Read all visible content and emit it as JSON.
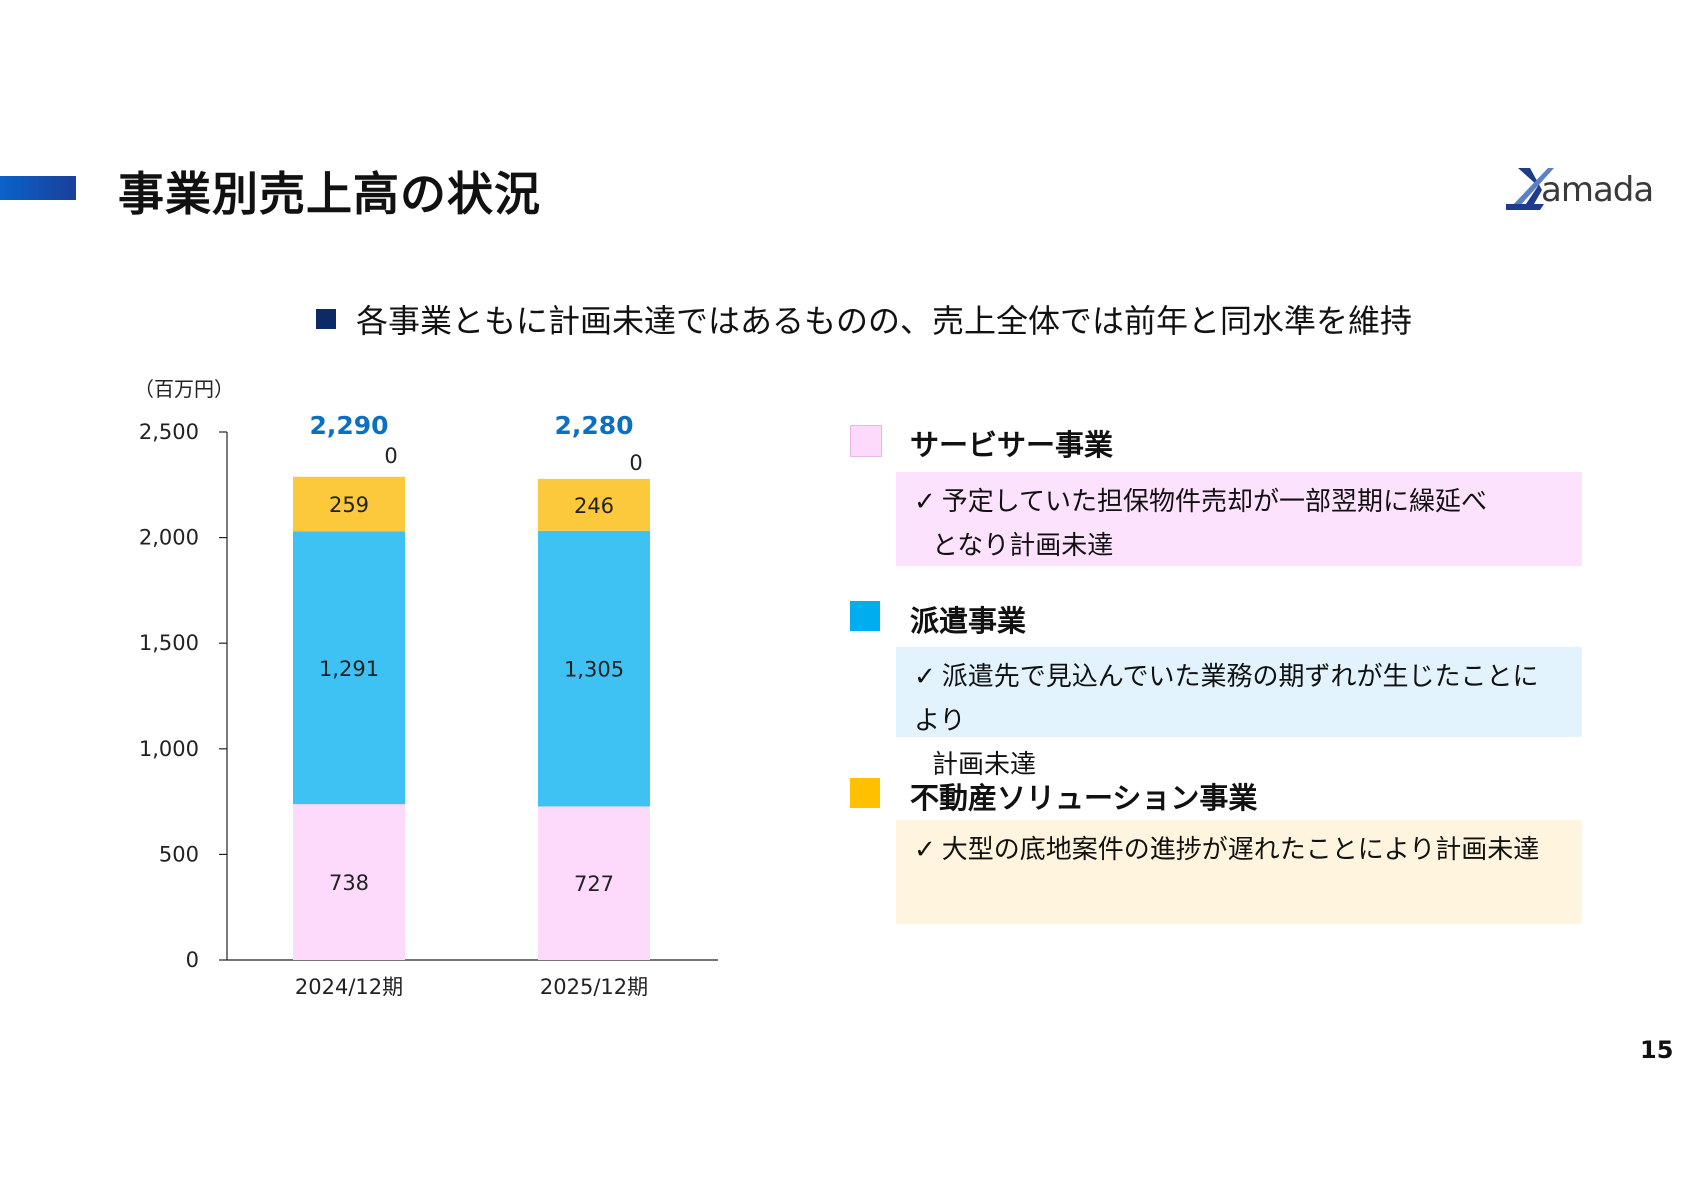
{
  "page_title": "事業別売上高の状況",
  "logo_text": "amada",
  "headline": "各事業ともに計画未達ではあるものの、売上全体では前年と同水準を維持",
  "page_number": "15",
  "colors": {
    "service": "#fdd9fc",
    "dispatch": "#3ec1f3",
    "realestate": "#fcc93c",
    "total_label": "#0b6fc4"
  },
  "chart_data": {
    "type": "bar",
    "stacked": true,
    "unit_label": "（百万円）",
    "categories": [
      "2024/12期",
      "2025/12期"
    ],
    "series": [
      {
        "key": "service",
        "values": [
          738,
          727
        ]
      },
      {
        "key": "dispatch",
        "values": [
          1291,
          1305
        ]
      },
      {
        "key": "realestate",
        "values": [
          259,
          246
        ]
      },
      {
        "key": "other",
        "values": [
          0,
          0
        ]
      }
    ],
    "value_labels": [
      [
        "738",
        "1,291",
        "259",
        "0"
      ],
      [
        "727",
        "1,305",
        "246",
        "0"
      ]
    ],
    "totals": [
      "2,290",
      "2,280"
    ],
    "ylim": [
      0,
      2500
    ],
    "yticks": [
      0,
      500,
      1000,
      1500,
      2000,
      2500
    ],
    "ytick_labels": [
      "0",
      "500",
      "1,000",
      "1,500",
      "2,000",
      "2,500"
    ],
    "grid": false
  },
  "legend": [
    {
      "label": "サービサー事業",
      "color": "#fdd9fc",
      "note_bg": "#fde2fd",
      "check": "✓",
      "lines": [
        "予定していた担保物件売却が一部翌期に繰延べ",
        "となり計画未達"
      ]
    },
    {
      "label": "派遣事業",
      "color": "#00aeef",
      "note_bg": "#e2f3fd",
      "check": "✓",
      "lines": [
        "派遣先で見込んでいた業務の期ずれが生じたことにより",
        "計画未達"
      ]
    },
    {
      "label": "不動産ソリューション事業",
      "color": "#ffc000",
      "note_bg": "#fff5de",
      "check": "✓",
      "lines": [
        "大型の底地案件の進捗が遅れたことにより計画未達"
      ]
    }
  ]
}
